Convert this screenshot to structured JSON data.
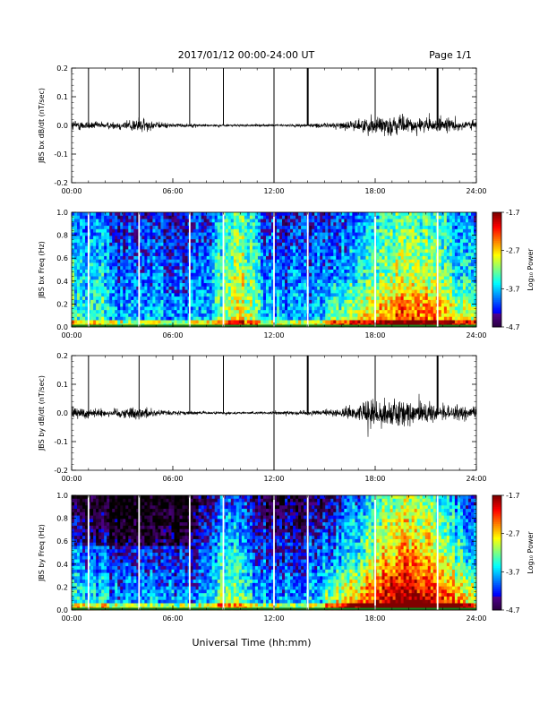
{
  "header": {
    "date_title": "2017/01/12  00:00-24:00 UT",
    "page_label": "Page 1/1"
  },
  "xaxis": {
    "label": "Universal Time (hh:mm)",
    "ticks": [
      "00:00",
      "06:00",
      "12:00",
      "18:00",
      "24:00"
    ]
  },
  "chart_data": [
    {
      "type": "line",
      "ylabel": "JBS bx dB/dt (nT/sec)",
      "xlim": [
        0,
        24
      ],
      "ylim": [
        -0.2,
        0.2
      ],
      "yticks": [
        "0.2",
        "0.1",
        "0.0",
        "-0.1",
        "-0.2"
      ],
      "markers_hours": [
        1.0,
        4.0,
        7.0,
        9.0,
        12.0,
        14.0,
        18.0,
        21.7
      ],
      "noise_envelope": {
        "x": [
          0,
          1,
          2,
          3,
          4,
          5,
          6,
          7,
          8,
          9,
          10,
          11,
          12,
          13,
          14,
          15,
          16,
          17,
          18,
          19,
          20,
          21,
          22,
          23,
          24
        ],
        "amplitude": [
          0.025,
          0.018,
          0.014,
          0.02,
          0.035,
          0.015,
          0.01,
          0.008,
          0.006,
          0.005,
          0.005,
          0.005,
          0.005,
          0.006,
          0.008,
          0.01,
          0.015,
          0.025,
          0.045,
          0.04,
          0.035,
          0.03,
          0.03,
          0.025,
          0.02
        ]
      }
    },
    {
      "type": "heatmap",
      "ylabel": "JBS bx Freq (Hz)",
      "ylim": [
        0.0,
        1.0
      ],
      "yticks": [
        "1.0",
        "0.8",
        "0.6",
        "0.4",
        "0.2",
        "0.0"
      ],
      "colorbar": {
        "label": "Log₁₀ Power",
        "ticks": [
          "-1.7",
          "-2.7",
          "-3.7",
          "-4.7"
        ],
        "range": [
          -4.7,
          -1.7
        ]
      },
      "markers_hours": [
        1.0,
        4.0,
        7.0,
        9.0,
        12.0,
        14.0,
        18.0,
        21.7
      ]
    },
    {
      "type": "line",
      "ylabel": "JBS by dB/dt (nT/sec)",
      "xlim": [
        0,
        24
      ],
      "ylim": [
        -0.2,
        0.2
      ],
      "yticks": [
        "0.2",
        "0.1",
        "0.0",
        "-0.1",
        "-0.2"
      ],
      "markers_hours": [
        1.0,
        4.0,
        7.0,
        9.0,
        12.0,
        14.0,
        18.0,
        21.7
      ],
      "noise_envelope": {
        "x": [
          0,
          1,
          2,
          3,
          4,
          5,
          6,
          7,
          8,
          9,
          10,
          11,
          12,
          13,
          14,
          15,
          16,
          17,
          18,
          19,
          20,
          21,
          22,
          23,
          24
        ],
        "amplitude": [
          0.03,
          0.022,
          0.018,
          0.02,
          0.03,
          0.014,
          0.01,
          0.008,
          0.006,
          0.005,
          0.005,
          0.005,
          0.006,
          0.008,
          0.01,
          0.012,
          0.02,
          0.035,
          0.06,
          0.065,
          0.05,
          0.04,
          0.035,
          0.03,
          0.025
        ]
      }
    },
    {
      "type": "heatmap",
      "ylabel": "JBS by Freq (Hz)",
      "ylim": [
        0.0,
        1.0
      ],
      "yticks": [
        "1.0",
        "0.8",
        "0.6",
        "0.4",
        "0.2",
        "0.0"
      ],
      "colorbar": {
        "label": "Log₁₀ Power",
        "ticks": [
          "-1.7",
          "-2.7",
          "-3.7",
          "-4.7"
        ],
        "range": [
          -4.7,
          -1.7
        ]
      },
      "markers_hours": [
        1.0,
        4.0,
        7.0,
        9.0,
        12.0,
        14.0,
        18.0,
        21.7
      ]
    }
  ]
}
